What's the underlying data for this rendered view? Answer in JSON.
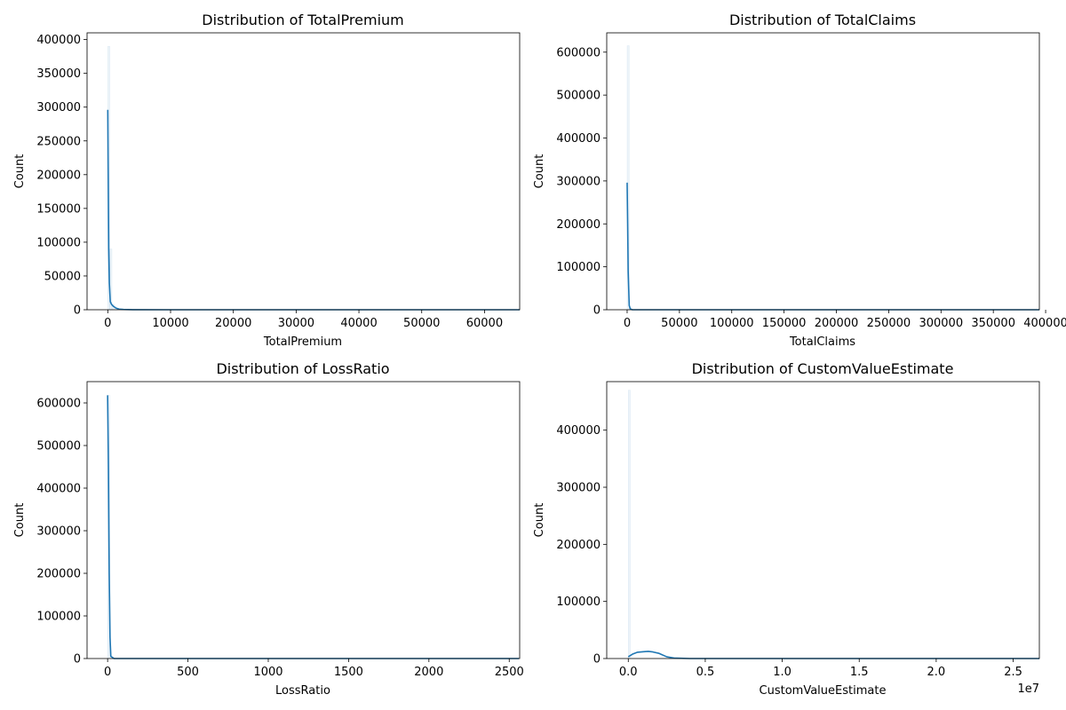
{
  "chart_data": [
    {
      "type": "histogram",
      "title": "Distribution of TotalPremium",
      "xlabel": "TotalPremium",
      "ylabel": "Count",
      "xlim": [
        -3300,
        65600
      ],
      "ylim": [
        0,
        410000
      ],
      "xticks": [
        0,
        10000,
        20000,
        30000,
        40000,
        50000,
        60000
      ],
      "xtick_labels": [
        "0",
        "10000",
        "20000",
        "30000",
        "40000",
        "50000",
        "60000"
      ],
      "yticks": [
        0,
        50000,
        100000,
        150000,
        200000,
        250000,
        300000,
        350000,
        400000
      ],
      "ytick_labels": [
        "0",
        "50000",
        "100000",
        "150000",
        "200000",
        "250000",
        "300000",
        "350000",
        "400000"
      ],
      "bars": [
        {
          "x0": 0,
          "x1": 330,
          "count": 390000
        },
        {
          "x0": 330,
          "x1": 660,
          "count": 90000
        },
        {
          "x0": 660,
          "x1": 990,
          "count": 8000
        }
      ],
      "kde": {
        "x": [
          0,
          50,
          150,
          250,
          400,
          600,
          900,
          1300,
          1800,
          2500,
          4000,
          10000,
          65600
        ],
        "y": [
          296000,
          220000,
          90000,
          40000,
          12000,
          8000,
          5000,
          2500,
          1000,
          400,
          100,
          0,
          0
        ]
      },
      "colors": {
        "bar": "#1f77b4",
        "kde": "#1f77b4"
      }
    },
    {
      "type": "histogram",
      "title": "Distribution of TotalClaims",
      "xlabel": "TotalClaims",
      "ylabel": "Count",
      "xlim": [
        -19500,
        394000
      ],
      "ylim": [
        0,
        645000
      ],
      "xticks": [
        0,
        50000,
        100000,
        150000,
        200000,
        250000,
        300000,
        350000,
        400000
      ],
      "xtick_labels": [
        "0",
        "50000",
        "100000",
        "150000",
        "200000",
        "250000",
        "300000",
        "350000",
        "400000"
      ],
      "yticks": [
        0,
        100000,
        200000,
        300000,
        400000,
        500000,
        600000
      ],
      "ytick_labels": [
        "0",
        "100000",
        "200000",
        "300000",
        "400000",
        "500000",
        "600000"
      ],
      "bars": [
        {
          "x0": 0,
          "x1": 1970,
          "count": 615000
        }
      ],
      "kde": {
        "x": [
          0,
          500,
          1000,
          2000,
          3000,
          5000,
          394000
        ],
        "y": [
          296000,
          200000,
          90000,
          10000,
          2000,
          0,
          0
        ]
      },
      "colors": {
        "bar": "#1f77b4",
        "kde": "#1f77b4"
      }
    },
    {
      "type": "histogram",
      "title": "Distribution of LossRatio",
      "xlabel": "LossRatio",
      "ylabel": "Count",
      "xlim": [
        -128,
        2565
      ],
      "ylim": [
        0,
        650000
      ],
      "xticks": [
        0,
        500,
        1000,
        1500,
        2000,
        2500
      ],
      "xtick_labels": [
        "0",
        "500",
        "1000",
        "1500",
        "2000",
        "2500"
      ],
      "yticks": [
        0,
        100000,
        200000,
        300000,
        400000,
        500000,
        600000
      ],
      "ytick_labels": [
        "0",
        "100000",
        "200000",
        "300000",
        "400000",
        "500000",
        "600000"
      ],
      "bars": [
        {
          "x0": 0,
          "x1": 13,
          "count": 618000
        }
      ],
      "kde": {
        "x": [
          0,
          5,
          10,
          15,
          20,
          40,
          2560
        ],
        "y": [
          618000,
          450000,
          200000,
          50000,
          5000,
          0,
          0
        ]
      },
      "colors": {
        "bar": "#1f77b4",
        "kde": "#1f77b4"
      }
    },
    {
      "type": "histogram",
      "title": "Distribution of CustomValueEstimate",
      "xlabel": "CustomValueEstimate",
      "ylabel": "Count",
      "axis_offset_label": "1e7",
      "xlim": [
        -0.14,
        2.67
      ],
      "ylim": [
        0,
        485000
      ],
      "xticks": [
        0,
        0.5,
        1.0,
        1.5,
        2.0,
        2.5
      ],
      "xtick_labels": [
        "0.0",
        "0.5",
        "1.0",
        "1.5",
        "2.0",
        "2.5"
      ],
      "yticks": [
        0,
        100000,
        200000,
        300000,
        400000
      ],
      "ytick_labels": [
        "0",
        "100000",
        "200000",
        "300000",
        "400000"
      ],
      "bars": [
        {
          "x0": 0.0,
          "x1": 0.013,
          "count": 470000
        }
      ],
      "kde": {
        "x": [
          0,
          0.03,
          0.06,
          0.1,
          0.13,
          0.16,
          0.2,
          0.25,
          0.3,
          0.4,
          2.67
        ],
        "y": [
          3000,
          8000,
          11000,
          12000,
          12500,
          11500,
          9000,
          3000,
          800,
          0,
          0
        ]
      },
      "colors": {
        "bar": "#1f77b4",
        "kde": "#1f77b4"
      }
    }
  ]
}
